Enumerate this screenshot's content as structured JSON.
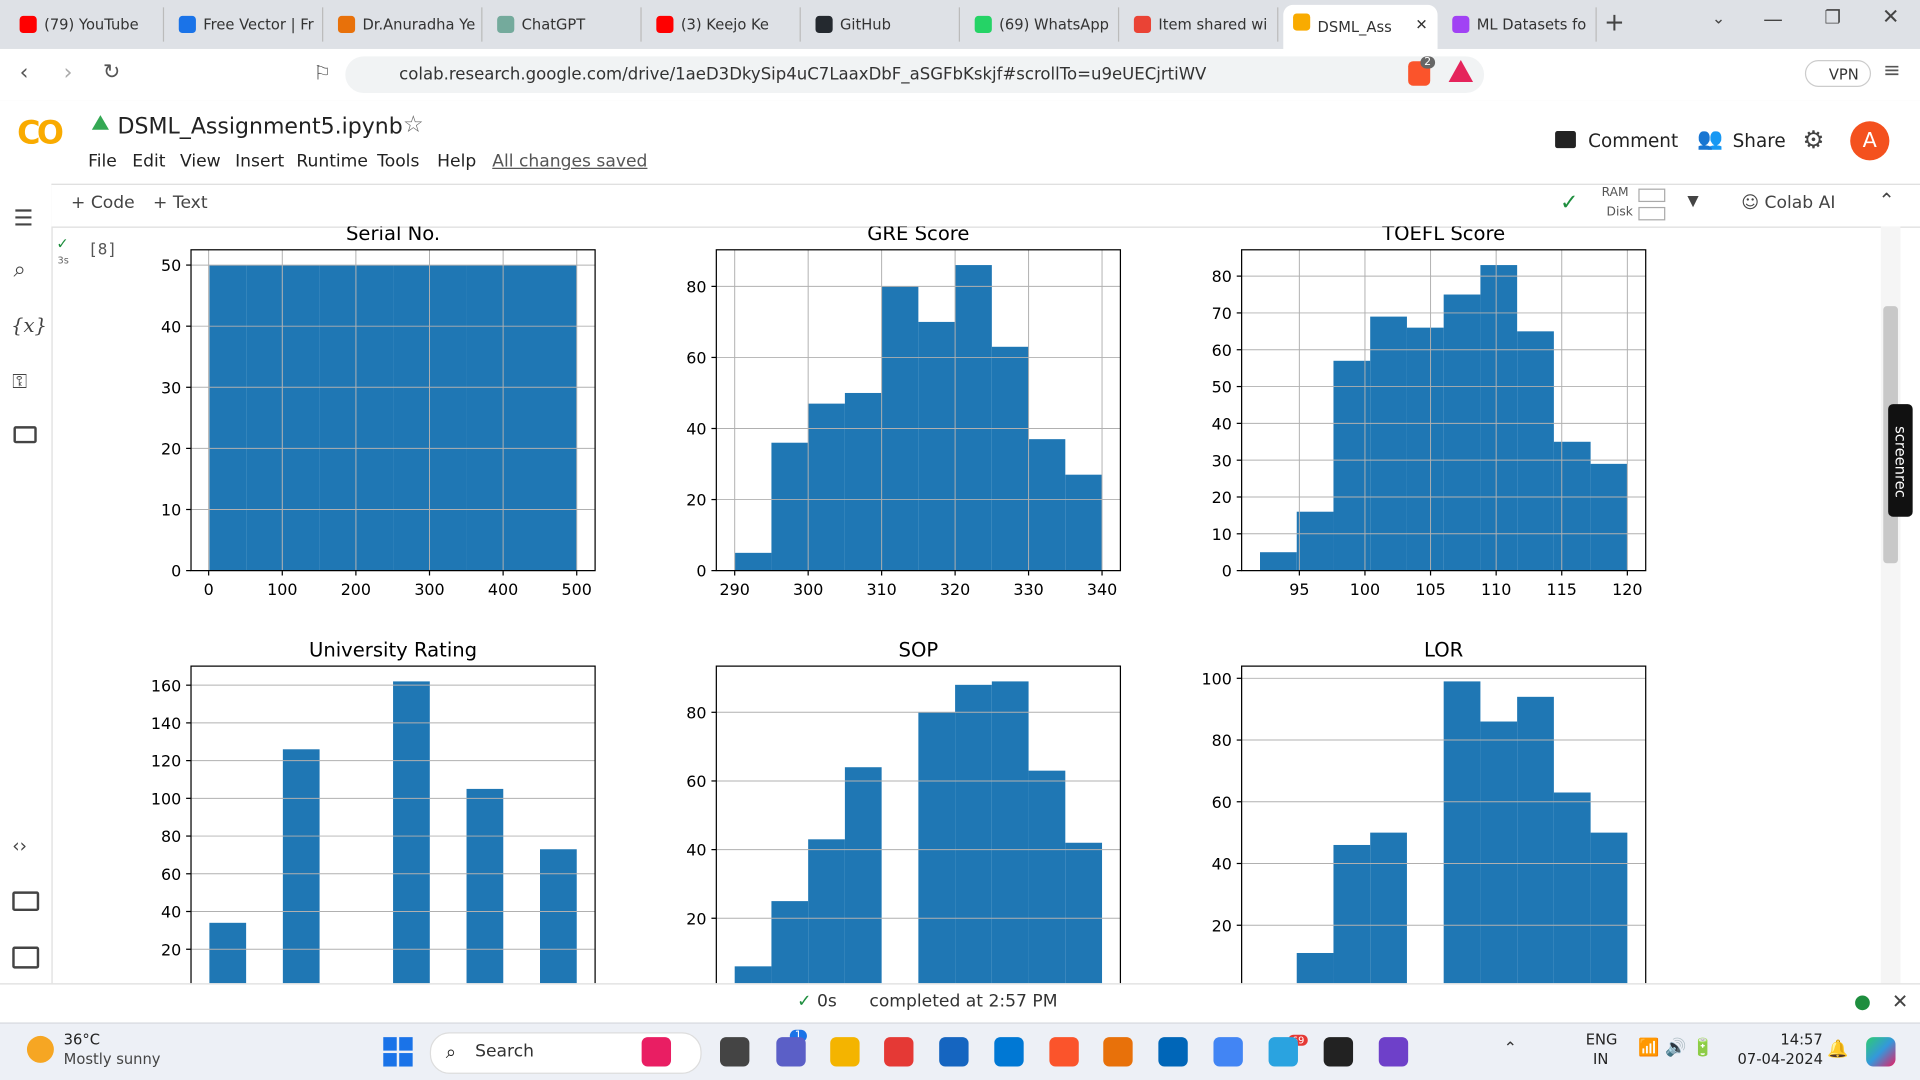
{
  "browser": {
    "tabs": [
      "(79) YouTube",
      "Free Vector | Fr",
      "Dr.Anuradha Ye",
      "ChatGPT",
      "(3) Keejo Ke",
      "GitHub",
      "(69) WhatsApp",
      "Item shared wi",
      "DSML_Ass",
      "ML Datasets fo"
    ],
    "url": "colab.research.google.com/drive/1aeD3DkySip4uC7LaaxDbF_aSGFbKskjf#scrollTo=u9eUECjrtiWV",
    "shield_badge": "2",
    "vpn": "VPN"
  },
  "colab": {
    "logo": "CO",
    "notebook": "DSML_Assignment5.ipynb",
    "menu": [
      "File",
      "Edit",
      "View",
      "Insert",
      "Runtime",
      "Tools",
      "Help"
    ],
    "saved": "All changes saved",
    "comment": "Comment",
    "share": "Share",
    "avatar": "A",
    "add_code": "Code",
    "add_text": "Text",
    "ram": "RAM",
    "disk": "Disk",
    "colab_ai": "Colab AI",
    "variables_icon": "{x}",
    "cell_time": "3s",
    "cell_index": "[8]",
    "screenrec": "screenrec"
  },
  "chart_data": [
    {
      "type": "histogram",
      "title": "Serial No.",
      "bins": [
        1,
        50.9,
        100.8,
        150.7,
        200.6,
        250.5,
        300.4,
        350.3,
        400.2,
        450.1,
        500
      ],
      "values": [
        50,
        50,
        50,
        50,
        50,
        50,
        50,
        50,
        50,
        50
      ],
      "xlim": [
        -23.95,
        524.95
      ],
      "ylim": [
        0,
        52.5
      ],
      "xticks": [
        0,
        100,
        200,
        300,
        400,
        500
      ],
      "yticks": [
        0,
        10,
        20,
        30,
        40,
        50
      ],
      "color": "#1f77b4",
      "grid": true
    },
    {
      "type": "histogram",
      "title": "GRE Score",
      "bins": [
        290,
        295,
        300,
        305,
        310,
        315,
        320,
        325,
        330,
        335,
        340
      ],
      "values": [
        5,
        36,
        47,
        50,
        80,
        70,
        86,
        63,
        37,
        27
      ],
      "xlim": [
        287.5,
        342.5
      ],
      "ylim": [
        0,
        90.3
      ],
      "xticks": [
        290,
        300,
        310,
        320,
        330,
        340
      ],
      "yticks": [
        0,
        20,
        40,
        60,
        80
      ],
      "color": "#1f77b4",
      "grid": true
    },
    {
      "type": "histogram",
      "title": "TOEFL Score",
      "bins": [
        92,
        94.8,
        97.6,
        100.4,
        103.2,
        106,
        108.8,
        111.6,
        114.4,
        117.2,
        120
      ],
      "values": [
        5,
        16,
        57,
        69,
        66,
        75,
        83,
        65,
        35,
        29
      ],
      "xlim": [
        90.6,
        121.4
      ],
      "ylim": [
        0,
        87.15
      ],
      "xticks": [
        95,
        100,
        105,
        110,
        115,
        120
      ],
      "yticks": [
        0,
        10,
        20,
        30,
        40,
        50,
        60,
        70,
        80
      ],
      "color": "#1f77b4",
      "grid": true
    },
    {
      "type": "histogram",
      "title": "University Rating",
      "bins": [
        1,
        1.4,
        1.8,
        2.2,
        2.6,
        3,
        3.4,
        3.8,
        4.2,
        4.6,
        5
      ],
      "values": [
        34,
        0,
        126,
        0,
        0,
        162,
        0,
        105,
        0,
        73
      ],
      "xlim": [
        0.8,
        5.2
      ],
      "ylim": [
        0,
        170.1
      ],
      "xticks": [],
      "yticks": [
        20,
        40,
        60,
        80,
        100,
        120,
        140,
        160
      ],
      "color": "#1f77b4",
      "grid": true
    },
    {
      "type": "histogram",
      "title": "SOP",
      "bins": [
        1,
        1.4,
        1.8,
        2.2,
        2.6,
        3,
        3.4,
        3.8,
        4.2,
        4.6,
        5
      ],
      "values": [
        6,
        25,
        43,
        64,
        0,
        80,
        88,
        89,
        63,
        42
      ],
      "xlim": [
        0.8,
        5.2
      ],
      "ylim": [
        0,
        93.45
      ],
      "xticks": [],
      "yticks": [
        20,
        40,
        60,
        80
      ],
      "color": "#1f77b4",
      "grid": true
    },
    {
      "type": "histogram",
      "title": "LOR",
      "bins": [
        1,
        1.4,
        1.8,
        2.2,
        2.6,
        3,
        3.4,
        3.8,
        4.2,
        4.6,
        5
      ],
      "values": [
        1,
        11,
        46,
        50,
        0,
        99,
        86,
        94,
        63,
        50
      ],
      "xlim": [
        0.8,
        5.2
      ],
      "ylim": [
        0,
        103.95
      ],
      "xticks": [],
      "yticks": [
        20,
        40,
        60,
        80,
        100
      ],
      "color": "#1f77b4",
      "grid": true
    }
  ],
  "status": {
    "elapsed": "0s",
    "message": "completed at 2:57 PM"
  },
  "taskbar": {
    "temperature": "36°C",
    "weather": "Mostly sunny",
    "search": "Search",
    "teams_badge": "1",
    "telegram_badge": "69",
    "lang": "ENG",
    "region": "IN",
    "time": "14:57",
    "date": "07-04-2024"
  }
}
